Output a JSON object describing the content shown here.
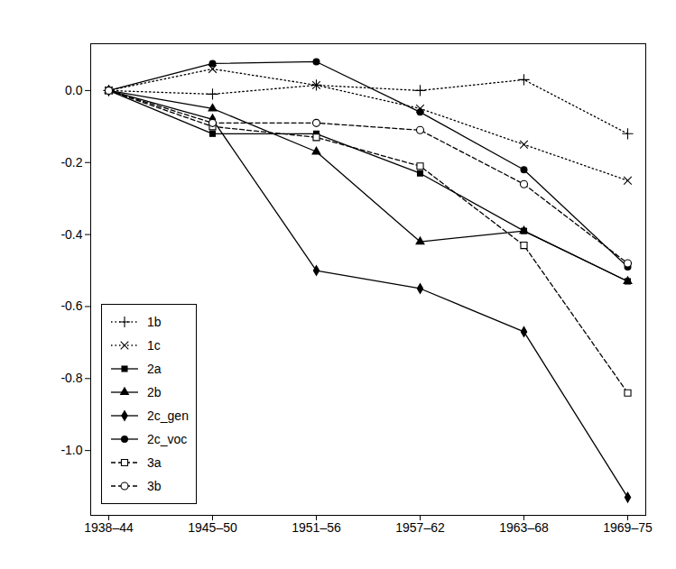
{
  "chart_data": {
    "type": "line",
    "categories": [
      "1938–44",
      "1945–50",
      "1951–56",
      "1957–62",
      "1963–68",
      "1969–75"
    ],
    "series": [
      {
        "name": "1b",
        "color": "#000000",
        "marker": "plus",
        "line_style": "dotted",
        "values": [
          0,
          -0.01,
          0.015,
          0.0,
          0.03,
          -0.12
        ]
      },
      {
        "name": "1c",
        "color": "#000000",
        "marker": "x",
        "line_style": "dotted",
        "values": [
          0,
          0.06,
          0.015,
          -0.05,
          -0.15,
          -0.25
        ]
      },
      {
        "name": "2a",
        "color": "#000000",
        "marker": "square",
        "line_style": "solid",
        "values": [
          0,
          -0.12,
          -0.12,
          -0.23,
          -0.39,
          -0.53
        ]
      },
      {
        "name": "2b",
        "color": "#000000",
        "marker": "triangle",
        "line_style": "solid",
        "values": [
          0,
          -0.05,
          -0.17,
          -0.42,
          -0.39,
          -0.53
        ]
      },
      {
        "name": "2c_gen",
        "color": "#000000",
        "marker": "diamond",
        "line_style": "solid",
        "values": [
          0,
          -0.08,
          -0.5,
          -0.55,
          -0.67,
          -1.13
        ]
      },
      {
        "name": "2c_voc",
        "color": "#000000",
        "marker": "circle",
        "line_style": "solid",
        "values": [
          0,
          0.075,
          0.08,
          -0.06,
          -0.22,
          -0.49
        ]
      },
      {
        "name": "3a",
        "color": "#000000",
        "marker": "open_square",
        "line_style": "dashed",
        "values": [
          0,
          -0.1,
          -0.13,
          -0.21,
          -0.43,
          -0.84
        ]
      },
      {
        "name": "3b",
        "color": "#000000",
        "marker": "open_circle",
        "line_style": "dashed",
        "values": [
          0,
          -0.09,
          -0.09,
          -0.11,
          -0.26,
          -0.48
        ]
      }
    ],
    "ylim": [
      -1.18,
      0.13
    ],
    "yticks": [
      {
        "value": 0,
        "label": "0.0"
      },
      -0.2,
      -0.4,
      -0.6,
      -0.8,
      {
        "value": -1,
        "label": "-1.0"
      }
    ],
    "grid": false,
    "legend": "lower left"
  }
}
